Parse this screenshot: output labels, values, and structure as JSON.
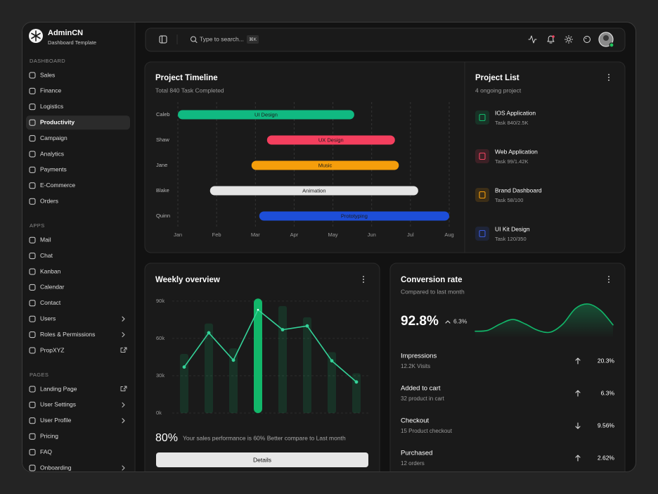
{
  "brand": {
    "name": "AdminCN",
    "subtitle": "Dashboard Template"
  },
  "sidebar": [
    {
      "title": "DASHBOARD",
      "items": [
        {
          "label": "Sales"
        },
        {
          "label": "Finance"
        },
        {
          "label": "Logistics"
        },
        {
          "label": "Productivity",
          "active": true
        },
        {
          "label": "Campaign"
        },
        {
          "label": "Analytics"
        },
        {
          "label": "Payments"
        },
        {
          "label": "E-Commerce"
        },
        {
          "label": "Orders"
        }
      ]
    },
    {
      "title": "APPS",
      "items": [
        {
          "label": "Mail"
        },
        {
          "label": "Chat"
        },
        {
          "label": "Kanban"
        },
        {
          "label": "Calendar"
        },
        {
          "label": "Contact"
        },
        {
          "label": "Users",
          "suffix": "chevron"
        },
        {
          "label": "Roles & Permissions",
          "suffix": "chevron"
        },
        {
          "label": "PropXYZ",
          "suffix": "external"
        }
      ]
    },
    {
      "title": "PAGES",
      "items": [
        {
          "label": "Landing Page",
          "suffix": "external"
        },
        {
          "label": "User Settings",
          "suffix": "chevron"
        },
        {
          "label": "User Profile",
          "suffix": "chevron"
        },
        {
          "label": "Pricing"
        },
        {
          "label": "FAQ"
        },
        {
          "label": "Onboarding",
          "suffix": "chevron"
        }
      ]
    }
  ],
  "topbar": {
    "search_placeholder": "Type to search...",
    "shortcut": "⌘K"
  },
  "timeline": {
    "title": "Project Timeline",
    "subtitle": "Total 840 Task Completed",
    "xlim": [
      0,
      7
    ],
    "xticks": [
      {
        "value": 0,
        "label": "Jan"
      },
      {
        "value": 1,
        "label": "Feb"
      },
      {
        "value": 2,
        "label": "Mar"
      },
      {
        "value": 3,
        "label": "Apr"
      },
      {
        "value": 4,
        "label": "May"
      },
      {
        "value": 5,
        "label": "Jun"
      },
      {
        "value": 6,
        "label": "Jul"
      },
      {
        "value": 7,
        "label": "Aug"
      }
    ],
    "tasks": [
      {
        "name": "Caleb",
        "label": "UI Design",
        "start": 0,
        "end": 4.55,
        "color": "#10b981"
      },
      {
        "name": "Shaw",
        "label": "UX Design",
        "start": 2.3,
        "end": 5.6,
        "color": "#f43f5e"
      },
      {
        "name": "Jane",
        "label": "Music",
        "start": 1.9,
        "end": 5.7,
        "color": "#f59e0b"
      },
      {
        "name": "Blake",
        "label": "Animation",
        "start": 0.83,
        "end": 6.2,
        "color": "#e5e5e5"
      },
      {
        "name": "Quinn",
        "label": "Prototyping",
        "start": 2.1,
        "end": 7,
        "color": "#1d4ed8"
      }
    ]
  },
  "project_list": {
    "title": "Project List",
    "subtitle": "4 ongoing project",
    "items": [
      {
        "name": "IOS Application",
        "detail": "Task 840/2.5K",
        "color": "#12b76a"
      },
      {
        "name": "Web Application",
        "detail": "Task 99/1.42K",
        "color": "#f04461"
      },
      {
        "name": "Brand Dashboard",
        "detail": "Task 58/100",
        "color": "#f59e0b"
      },
      {
        "name": "UI Kit Design",
        "detail": "Task 120/350",
        "color": "#3b5bdb"
      }
    ]
  },
  "weekly": {
    "title": "Weekly overview",
    "ylim": [
      0,
      95000
    ],
    "yticks": [
      {
        "value": 0,
        "label": "0k"
      },
      {
        "value": 30000,
        "label": "30k"
      },
      {
        "value": 60000,
        "label": "60k"
      },
      {
        "value": 90000,
        "label": "90k"
      }
    ],
    "bars": [
      47500,
      72000,
      52000,
      92000,
      86000,
      77000,
      49000,
      32000
    ],
    "line": [
      37000,
      64500,
      42500,
      83000,
      67000,
      70000,
      42000,
      25000
    ],
    "highlight": 3,
    "bar_color": "#12b76a",
    "line_color": "#34d399",
    "stat": "80%",
    "summary": "Your sales performance is 60% Better compare to Last month",
    "button": "Details"
  },
  "conversion": {
    "title": "Conversion rate",
    "subtitle": "Compared to last month",
    "rate": "92.8%",
    "change": "6.3%",
    "trend": "up",
    "sparkline": [
      17,
      18,
      25,
      30,
      25,
      18,
      16,
      25,
      42,
      47,
      40,
      24
    ],
    "color": "#12b76a",
    "metrics": [
      {
        "name": "Impressions",
        "detail": "12.2K Visits",
        "value": "20.3%",
        "trend": "up"
      },
      {
        "name": "Added to cart",
        "detail": "32 product in cart",
        "value": "6.3%",
        "trend": "up"
      },
      {
        "name": "Checkout",
        "detail": "15 Product checkout",
        "value": "9.56%",
        "trend": "down"
      },
      {
        "name": "Purchased",
        "detail": "12 orders",
        "value": "2.62%",
        "trend": "up"
      }
    ]
  }
}
